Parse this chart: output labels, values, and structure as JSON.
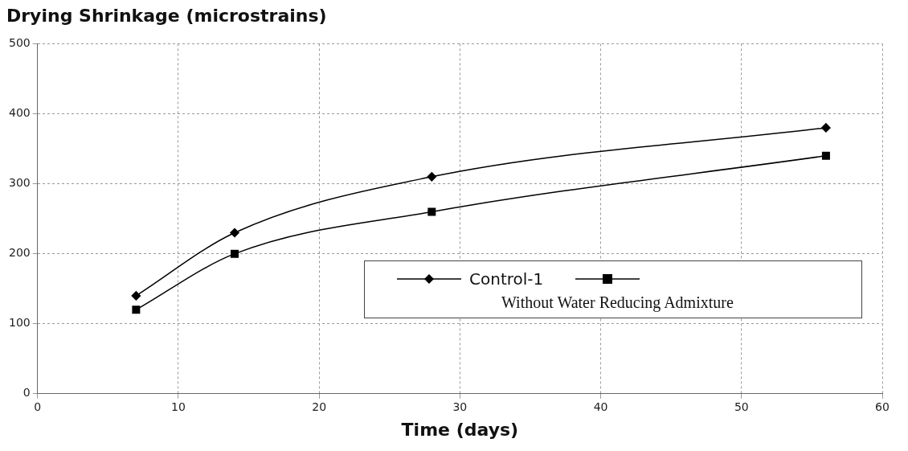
{
  "chart_data": {
    "type": "line",
    "title": "Drying Shrinkage (microstrains)",
    "xlabel": "Time (days)",
    "x": [
      7,
      14,
      28,
      56
    ],
    "series": [
      {
        "name": "Control-1",
        "color": "#000000",
        "marker": "diamond",
        "values": [
          140,
          230,
          310,
          380
        ]
      },
      {
        "color": "#000000",
        "marker": "square",
        "values": [
          120,
          200,
          260,
          340
        ]
      }
    ],
    "xlim": [
      0,
      60
    ],
    "xticks": [
      0,
      10,
      20,
      30,
      40,
      50,
      60
    ],
    "ylim": [
      0,
      500
    ],
    "yticks": [
      0,
      100,
      200,
      300,
      400,
      500
    ],
    "grid": true,
    "legend": "center right",
    "annotations": [
      "Without Water Reducing Admixture"
    ]
  }
}
